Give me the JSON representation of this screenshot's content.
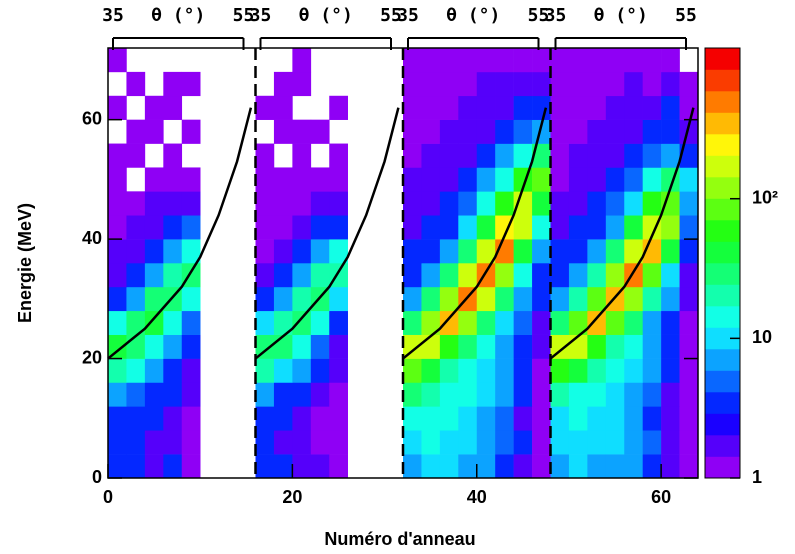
{
  "chart_data": {
    "type": "heatmap",
    "xlabel": "Numéro d'anneau",
    "ylabel": "Energie (MeV)",
    "xlim": [
      0,
      64
    ],
    "xticks": [
      0,
      20,
      40,
      60
    ],
    "ylim": [
      0,
      72
    ],
    "yticks": [
      0,
      20,
      40,
      60
    ],
    "x_bins": [
      0,
      2,
      4,
      6,
      8,
      10,
      12,
      14,
      16,
      18,
      20,
      22,
      24,
      26,
      28,
      30,
      32,
      34,
      36,
      38,
      40,
      42,
      44,
      46,
      48,
      50,
      52,
      54,
      56,
      58,
      60,
      62,
      64
    ],
    "y_bins": [
      0,
      4,
      8,
      12,
      16,
      20,
      24,
      28,
      32,
      36,
      40,
      44,
      48,
      52,
      56,
      60,
      64,
      68,
      72
    ],
    "z": [
      [
        3,
        4,
        2,
        3,
        1,
        0,
        0,
        0,
        4,
        3,
        2,
        2,
        1,
        0,
        0,
        0,
        8,
        10,
        9,
        8,
        6,
        4,
        2,
        1,
        7,
        9,
        8,
        7,
        6,
        4,
        2,
        1
      ],
      [
        3,
        3,
        2,
        2,
        1,
        0,
        0,
        0,
        3,
        2,
        2,
        1,
        1,
        0,
        0,
        0,
        10,
        12,
        11,
        9,
        7,
        5,
        3,
        1,
        9,
        11,
        10,
        9,
        7,
        5,
        2,
        1
      ],
      [
        4,
        3,
        3,
        2,
        1,
        0,
        0,
        0,
        3,
        3,
        2,
        1,
        1,
        0,
        0,
        0,
        12,
        13,
        12,
        10,
        8,
        5,
        2,
        1,
        11,
        12,
        11,
        9,
        7,
        4,
        2,
        1
      ],
      [
        8,
        5,
        4,
        3,
        2,
        0,
        0,
        0,
        7,
        4,
        3,
        2,
        1,
        0,
        0,
        0,
        25,
        18,
        14,
        12,
        9,
        6,
        3,
        1,
        22,
        16,
        13,
        11,
        8,
        5,
        2,
        1
      ],
      [
        20,
        12,
        6,
        4,
        2,
        0,
        0,
        0,
        18,
        10,
        6,
        3,
        2,
        0,
        0,
        0,
        80,
        40,
        22,
        15,
        11,
        7,
        3,
        1,
        70,
        35,
        20,
        14,
        10,
        6,
        3,
        1
      ],
      [
        35,
        30,
        15,
        6,
        3,
        0,
        0,
        0,
        30,
        28,
        12,
        5,
        2,
        0,
        0,
        0,
        180,
        200,
        70,
        25,
        14,
        8,
        4,
        2,
        160,
        180,
        60,
        22,
        12,
        7,
        3,
        1
      ],
      [
        12,
        25,
        35,
        15,
        5,
        0,
        0,
        0,
        10,
        22,
        30,
        12,
        4,
        0,
        0,
        0,
        30,
        120,
        350,
        120,
        30,
        10,
        5,
        2,
        25,
        100,
        300,
        100,
        25,
        8,
        4,
        1
      ],
      [
        4,
        8,
        25,
        30,
        12,
        0,
        0,
        0,
        4,
        6,
        20,
        28,
        10,
        0,
        0,
        0,
        8,
        25,
        120,
        450,
        150,
        25,
        8,
        3,
        7,
        22,
        100,
        400,
        130,
        20,
        6,
        2
      ],
      [
        2,
        4,
        8,
        20,
        25,
        0,
        0,
        0,
        2,
        3,
        6,
        18,
        22,
        0,
        0,
        0,
        4,
        8,
        25,
        150,
        500,
        120,
        12,
        4,
        4,
        7,
        20,
        130,
        450,
        100,
        10,
        2
      ],
      [
        2,
        2,
        4,
        8,
        15,
        0,
        0,
        0,
        1,
        2,
        3,
        6,
        12,
        0,
        0,
        0,
        3,
        4,
        8,
        30,
        200,
        450,
        40,
        6,
        3,
        4,
        7,
        25,
        180,
        400,
        35,
        3
      ],
      [
        1,
        2,
        2,
        3,
        5,
        0,
        0,
        0,
        1,
        1,
        2,
        3,
        4,
        0,
        0,
        0,
        2,
        3,
        4,
        10,
        40,
        250,
        200,
        15,
        2,
        3,
        4,
        8,
        35,
        200,
        120,
        5
      ],
      [
        1,
        1,
        2,
        2,
        2,
        0,
        0,
        0,
        1,
        1,
        1,
        2,
        2,
        0,
        0,
        0,
        2,
        2,
        3,
        5,
        12,
        60,
        180,
        40,
        2,
        2,
        3,
        5,
        10,
        50,
        80,
        8
      ],
      [
        1,
        0,
        1,
        1,
        1,
        0,
        0,
        0,
        1,
        1,
        1,
        1,
        1,
        0,
        0,
        0,
        2,
        2,
        2,
        3,
        6,
        15,
        60,
        80,
        1,
        2,
        2,
        3,
        5,
        12,
        30,
        10
      ],
      [
        1,
        1,
        0,
        1,
        0,
        0,
        0,
        0,
        1,
        0,
        1,
        0,
        1,
        0,
        0,
        0,
        1,
        2,
        2,
        2,
        3,
        6,
        15,
        30,
        1,
        2,
        2,
        2,
        3,
        5,
        8,
        4
      ],
      [
        0,
        1,
        1,
        0,
        1,
        0,
        0,
        0,
        0,
        1,
        1,
        1,
        0,
        0,
        0,
        0,
        1,
        1,
        2,
        2,
        2,
        3,
        5,
        8,
        1,
        1,
        2,
        2,
        2,
        3,
        4,
        2
      ],
      [
        1,
        0,
        1,
        1,
        0,
        0,
        0,
        0,
        1,
        1,
        0,
        0,
        1,
        0,
        0,
        0,
        1,
        1,
        1,
        2,
        2,
        2,
        3,
        4,
        1,
        1,
        1,
        2,
        2,
        2,
        3,
        1
      ],
      [
        0,
        1,
        0,
        1,
        1,
        0,
        0,
        0,
        0,
        1,
        1,
        0,
        0,
        0,
        0,
        0,
        1,
        1,
        1,
        1,
        2,
        2,
        2,
        2,
        1,
        1,
        1,
        1,
        2,
        1,
        2,
        1
      ],
      [
        1,
        0,
        0,
        0,
        0,
        0,
        0,
        0,
        0,
        0,
        1,
        0,
        0,
        0,
        0,
        0,
        1,
        1,
        1,
        1,
        1,
        1,
        1,
        1,
        1,
        1,
        1,
        1,
        1,
        1,
        1,
        0
      ]
    ],
    "zlog": true,
    "zlim": [
      1,
      1200
    ],
    "zticks": [
      1,
      10,
      {
        "value": 100,
        "label": "10²"
      }
    ],
    "dividers": [
      16,
      32,
      48
    ],
    "curves": [
      {
        "color": "#000000",
        "x": [
          0,
          4,
          8,
          10,
          12,
          14,
          15.5
        ],
        "y": [
          20,
          25,
          32,
          37,
          44,
          53,
          62
        ]
      },
      {
        "color": "#000000",
        "x": [
          16,
          20,
          24,
          26,
          28,
          30,
          31.5
        ],
        "y": [
          20,
          25,
          32,
          37,
          44,
          53,
          62
        ]
      },
      {
        "color": "#000000",
        "x": [
          32,
          36,
          40,
          42,
          44,
          46,
          47.5
        ],
        "y": [
          20,
          25,
          32,
          37,
          44,
          53,
          62
        ]
      },
      {
        "color": "#000000",
        "x": [
          48,
          52,
          56,
          58,
          60,
          62,
          63.5
        ],
        "y": [
          20,
          25,
          32,
          37,
          44,
          53,
          62
        ]
      }
    ],
    "top_axes": [
      {
        "label": "θ (°)",
        "xlim": [
          35,
          55
        ],
        "xticks": [
          35,
          55
        ]
      },
      {
        "label": "θ (°)",
        "xlim": [
          35,
          55
        ],
        "xticks": [
          35,
          55
        ]
      },
      {
        "label": "θ (°)",
        "xlim": [
          35,
          55
        ],
        "xticks": [
          35,
          55
        ]
      },
      {
        "label": "θ (°)",
        "xlim": [
          35,
          55
        ],
        "xticks": [
          35,
          55
        ]
      }
    ]
  }
}
